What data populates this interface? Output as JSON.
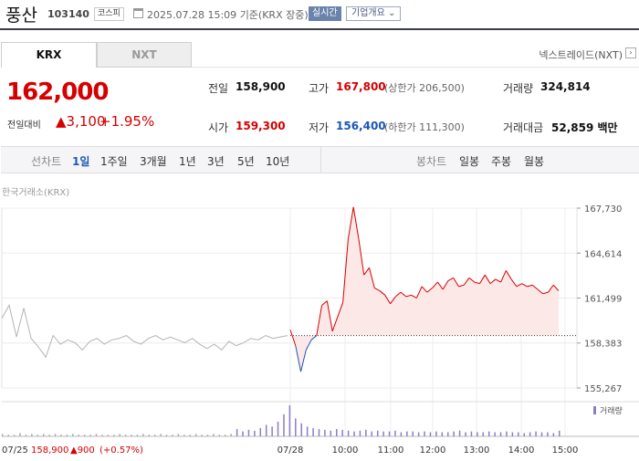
{
  "stock": {
    "name": "풍산",
    "code": "103140",
    "market": "코스피",
    "datetime": "2025.07.28 15:09",
    "basis": "기준(KRX 장중)",
    "live_label": "실시간",
    "company_info": "기업개요"
  },
  "tabs": {
    "krx": "KRX",
    "nxt": "NXT"
  },
  "nextrade_link": "넥스트레이드(NXT)",
  "quote": {
    "price": "162,000",
    "change_label": "전일대비",
    "change_value": "3,100",
    "change_pct": "+1.95%"
  },
  "summary": {
    "prev_label": "전일",
    "prev": "158,900",
    "high_label": "고가",
    "high": "167,800",
    "upper_limit": "(상한가 206,500)",
    "volume_label": "거래량",
    "volume": "324,814",
    "open_label": "시가",
    "open": "159,300",
    "low_label": "저가",
    "low": "156,400",
    "lower_limit": "(하한가 111,300)",
    "amount_label": "거래대금",
    "amount": "52,859 백만"
  },
  "periods": {
    "line_title": "선차트",
    "line_items": [
      "1일",
      "1주일",
      "3개월",
      "1년",
      "3년",
      "5년",
      "10년"
    ],
    "active": "1일",
    "candle_title": "봉차트",
    "candle_items": [
      "일봉",
      "주봉",
      "월봉"
    ]
  },
  "exchange_label": "한국거래소(KRX)",
  "colors": {
    "up": "#d60000",
    "down": "#1a55b8",
    "prev_day_line": "#b4b4b4",
    "fill": "#fde8e8"
  },
  "chart_data": {
    "type": "line",
    "y_ticks": [
      "167,730",
      "164,614",
      "161,499",
      "158,383",
      "155,267"
    ],
    "ylim": [
      155267,
      167730
    ],
    "x_ticks": [
      "07/28",
      "10:00",
      "11:00",
      "12:00",
      "13:00",
      "14:00",
      "15:00"
    ],
    "prev_close": 158900,
    "prev_day_info": {
      "date": "07/25",
      "close": "158,900",
      "change": "900",
      "pct": "(+0.57%)"
    },
    "volume_label": "거래량",
    "series": [
      {
        "name": "",
        "session": "07/25",
        "values": [
          160100,
          161000,
          158800,
          160800,
          158700,
          158100,
          157400,
          158900,
          158300,
          158600,
          158400,
          157900,
          158500,
          158700,
          158300,
          158600,
          158700,
          158900,
          158500,
          158300,
          158700,
          158900,
          158600,
          158800,
          158600,
          158400,
          158700,
          158300,
          158000,
          158300,
          157900,
          158500,
          158200,
          158400,
          158700,
          158600,
          158900,
          158700,
          158800,
          158900
        ]
      },
      {
        "name": "",
        "session": "07/28",
        "values": [
          159300,
          158200,
          156400,
          157900,
          158600,
          158900,
          161000,
          161300,
          159200,
          160200,
          161200,
          165600,
          167800,
          165600,
          163100,
          163600,
          162200,
          162000,
          161700,
          161100,
          161600,
          161900,
          161600,
          161700,
          161500,
          162300,
          161900,
          162200,
          162600,
          162100,
          162700,
          162900,
          162300,
          162400,
          162900,
          162600,
          162500,
          163100,
          162500,
          162800,
          162600,
          163400,
          162800,
          162300,
          162500,
          162300,
          162400,
          162100,
          161800,
          161900,
          162400,
          162000
        ]
      }
    ],
    "volume": [
      3,
      2,
      2,
      4,
      2,
      3,
      2,
      3,
      2,
      3,
      2,
      2,
      3,
      2,
      2,
      2,
      3,
      2,
      2,
      2,
      3,
      2,
      2,
      2,
      3,
      2,
      2,
      3,
      2,
      2,
      3,
      2,
      2,
      3,
      2,
      2,
      3,
      2,
      2,
      3,
      9,
      6,
      8,
      7,
      10,
      14,
      12,
      18,
      27,
      38,
      22,
      16,
      12,
      10,
      9,
      8,
      7,
      9,
      8,
      7,
      6,
      7,
      8,
      6,
      7,
      6,
      6,
      7,
      5,
      6,
      6,
      5,
      6,
      5,
      6,
      5,
      5,
      6,
      7,
      5,
      6,
      5,
      5,
      6,
      5,
      5,
      6,
      5,
      5,
      4,
      5,
      6,
      5,
      5,
      4,
      7
    ]
  }
}
